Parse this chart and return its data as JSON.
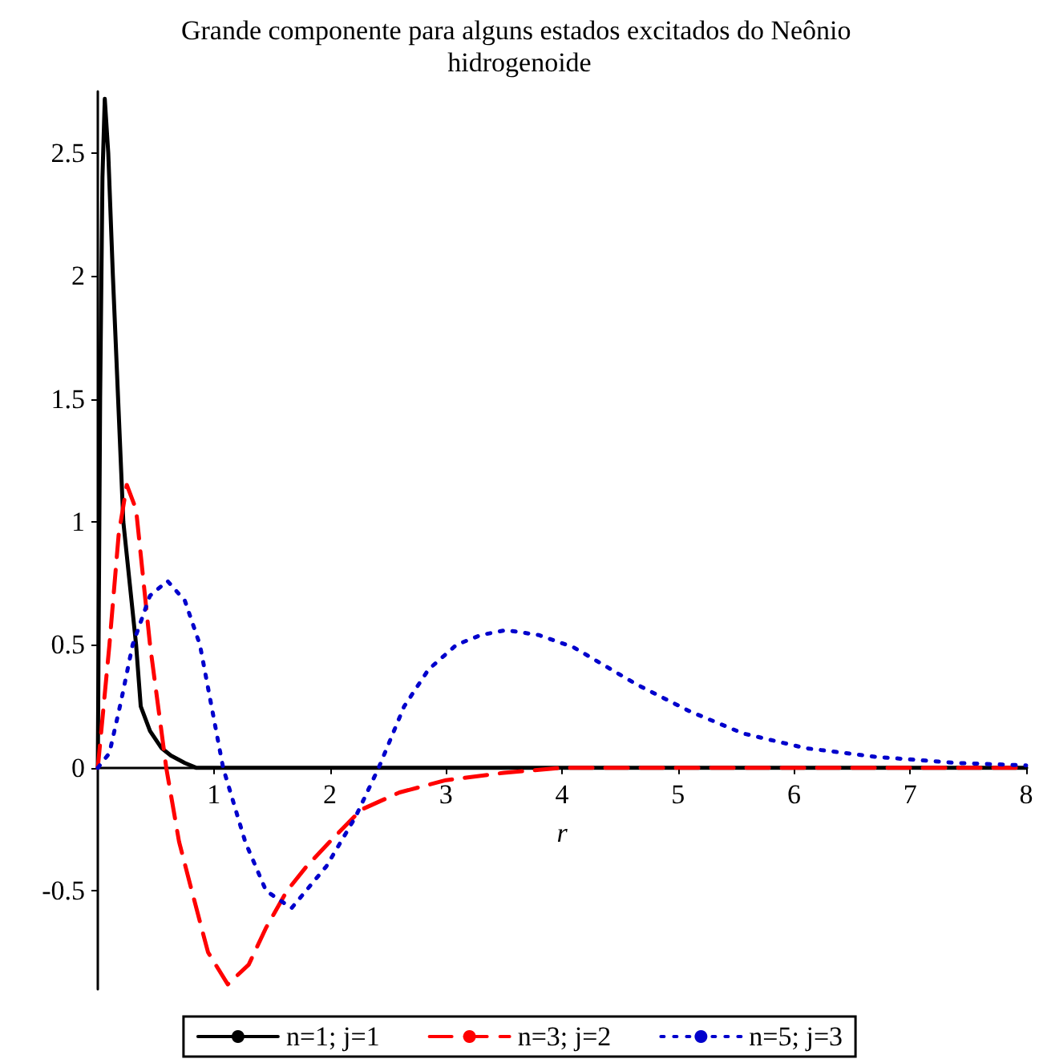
{
  "chart_data": {
    "type": "line",
    "title": "Grande componente para alguns estados excitados do Neônio hidrogenoide",
    "xlabel": "r",
    "xlim": [
      0,
      8
    ],
    "xticks": [
      1,
      2,
      3,
      4,
      5,
      6,
      7,
      8
    ],
    "ylim": [
      -0.9,
      2.75
    ],
    "yticks": [
      -0.5,
      0,
      0.5,
      1,
      1.5,
      2,
      2.5
    ],
    "grid": false,
    "legend": "bottom",
    "marker": "none",
    "series": [
      {
        "name": "n=1; j=1",
        "color": "#000000",
        "line_style": "solid",
        "x": [
          0,
          0.02,
          0.04,
          0.06,
          0.09,
          0.13,
          0.22,
          0.33,
          0.37,
          0.45,
          0.55,
          0.63,
          0.75,
          0.85,
          1,
          2,
          3,
          4,
          5,
          6,
          7,
          8
        ],
        "values": [
          0,
          1.5,
          2.4,
          2.72,
          2.5,
          2,
          1,
          0.5,
          0.25,
          0.15,
          0.08,
          0.05,
          0.02,
          0,
          0,
          0,
          0,
          0,
          0,
          0,
          0,
          0
        ]
      },
      {
        "name": "n=3; j=2",
        "color": "#ff0000",
        "line_style": "dashed",
        "x": [
          0,
          0.05,
          0.1,
          0.18,
          0.25,
          0.33,
          0.45,
          0.59,
          0.7,
          0.81,
          0.95,
          1.12,
          1.3,
          1.45,
          1.63,
          1.8,
          2,
          2.27,
          2.6,
          3,
          3.5,
          4,
          5,
          6,
          7,
          8
        ],
        "values": [
          0,
          0.25,
          0.5,
          0.95,
          1.15,
          1.05,
          0.5,
          0,
          -0.3,
          -0.5,
          -0.75,
          -0.88,
          -0.8,
          -0.65,
          -0.5,
          -0.4,
          -0.3,
          -0.17,
          -0.1,
          -0.05,
          -0.02,
          0,
          0,
          0,
          0,
          0
        ]
      },
      {
        "name": "n=5; j=3",
        "color": "#0000cc",
        "line_style": "dotted",
        "x": [
          0,
          0.1,
          0.2,
          0.3,
          0.45,
          0.6,
          0.75,
          0.88,
          1.08,
          1.27,
          1.45,
          1.67,
          1.97,
          2.22,
          2.42,
          2.64,
          2.85,
          3.09,
          3.3,
          3.52,
          3.8,
          4.1,
          4.64,
          5.1,
          5.56,
          6.1,
          6.7,
          7.4,
          8
        ],
        "values": [
          0,
          0.06,
          0.27,
          0.5,
          0.7,
          0.76,
          0.68,
          0.5,
          0,
          -0.3,
          -0.5,
          -0.57,
          -0.4,
          -0.2,
          0,
          0.25,
          0.4,
          0.5,
          0.54,
          0.56,
          0.54,
          0.49,
          0.34,
          0.23,
          0.14,
          0.08,
          0.045,
          0.02,
          0.01
        ]
      }
    ]
  }
}
